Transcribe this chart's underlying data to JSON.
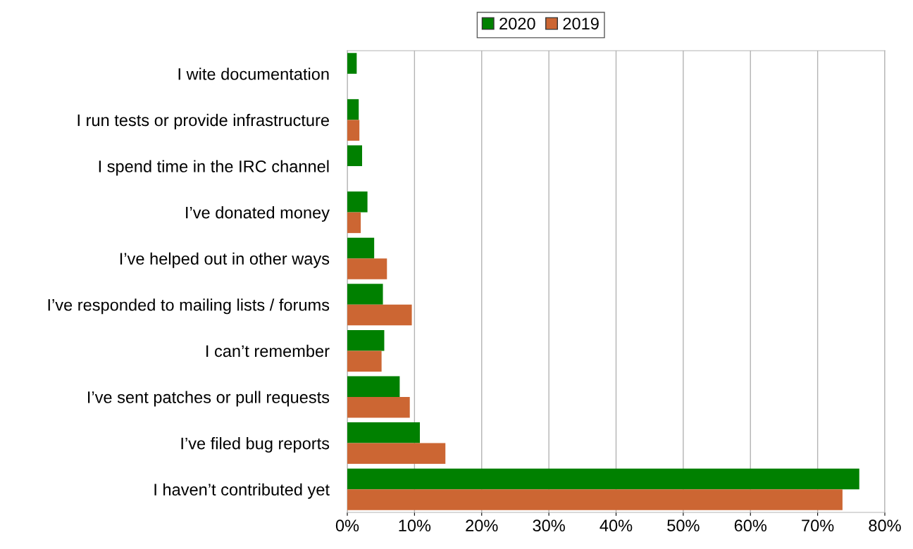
{
  "chart_data": {
    "type": "bar",
    "orientation": "horizontal",
    "categories": [
      "I wite documentation",
      "I run tests or provide infrastructure",
      "I spend time in the IRC channel",
      "I’ve donated money",
      "I’ve helped out in other ways",
      "I’ve responded to mailing lists / forums",
      "I can’t remember",
      "I’ve sent patches or pull requests",
      "I’ve filed bug reports",
      "I haven’t contributed yet"
    ],
    "series": [
      {
        "name": "2020",
        "color": "#008000",
        "values": [
          1.4,
          1.7,
          2.2,
          3.0,
          4.0,
          5.3,
          5.5,
          7.8,
          10.8,
          76.2
        ]
      },
      {
        "name": "2019",
        "color": "#cc6633",
        "values": [
          null,
          1.8,
          null,
          2.0,
          5.9,
          9.6,
          5.1,
          9.3,
          14.6,
          73.7
        ]
      }
    ],
    "xlim": [
      0,
      80
    ],
    "xticks": [
      {
        "value": 0,
        "label": "0%"
      },
      {
        "value": 10,
        "label": "10%"
      },
      {
        "value": 20,
        "label": "20%"
      },
      {
        "value": 30,
        "label": "30%"
      },
      {
        "value": 40,
        "label": "40%"
      },
      {
        "value": 50,
        "label": "50%"
      },
      {
        "value": 60,
        "label": "60%"
      },
      {
        "value": 70,
        "label": "70%"
      },
      {
        "value": 80,
        "label": "80%"
      }
    ],
    "grid": "x",
    "legend": "top"
  }
}
